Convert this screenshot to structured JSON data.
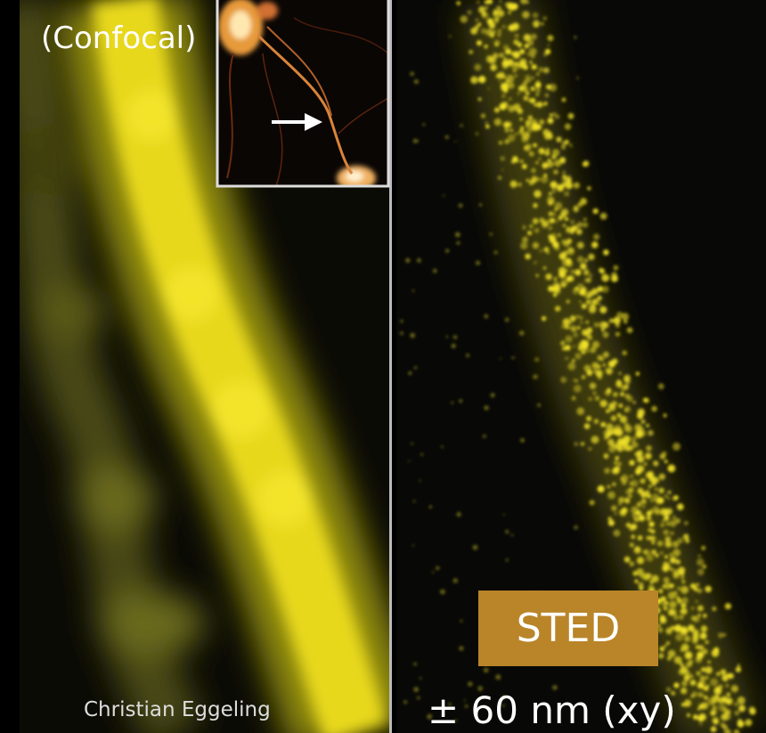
{
  "labels": {
    "confocal": "(Confocal)",
    "sted": "STED",
    "resolution": "± 60 nm (xy)",
    "credit": "Christian Eggeling"
  }
}
